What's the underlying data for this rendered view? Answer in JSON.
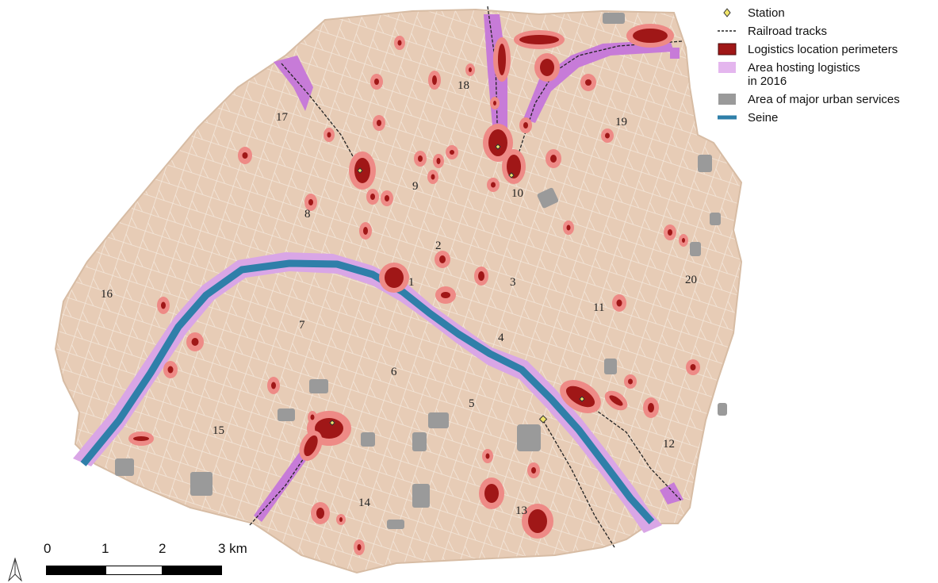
{
  "legend": {
    "items": [
      {
        "label": "Station",
        "symbol": "station-diamond"
      },
      {
        "label": "Railroad tracks",
        "symbol": "dashed-line"
      },
      {
        "label": "Logistics location perimeters",
        "symbol": "dark-red-box"
      },
      {
        "label": "Area hosting logistics in 2016",
        "symbol": "light-pink-box"
      },
      {
        "label": "Area of major urban services",
        "symbol": "grey-box"
      },
      {
        "label": "Seine",
        "symbol": "blue-line"
      }
    ]
  },
  "colors": {
    "land": "#e7ccb6",
    "street": "#f3e6da",
    "river": "#2f7fa9",
    "logistics_2016": "#d9a6e6",
    "logistics_2016_strong": "#c77bd8",
    "perimeter_fill": "#a01717",
    "perimeter_halo": "#ee8a86",
    "urban_services": "#9a9a9a",
    "station": "#f0e46a"
  },
  "arrondissements": [
    "1",
    "2",
    "3",
    "4",
    "5",
    "6",
    "7",
    "8",
    "9",
    "10",
    "11",
    "12",
    "13",
    "14",
    "15",
    "16",
    "17",
    "18",
    "19",
    "20"
  ],
  "scale": {
    "ticks": [
      "0",
      "1",
      "2",
      "3 km"
    ]
  },
  "north_arrow": "north-arrow-icon"
}
